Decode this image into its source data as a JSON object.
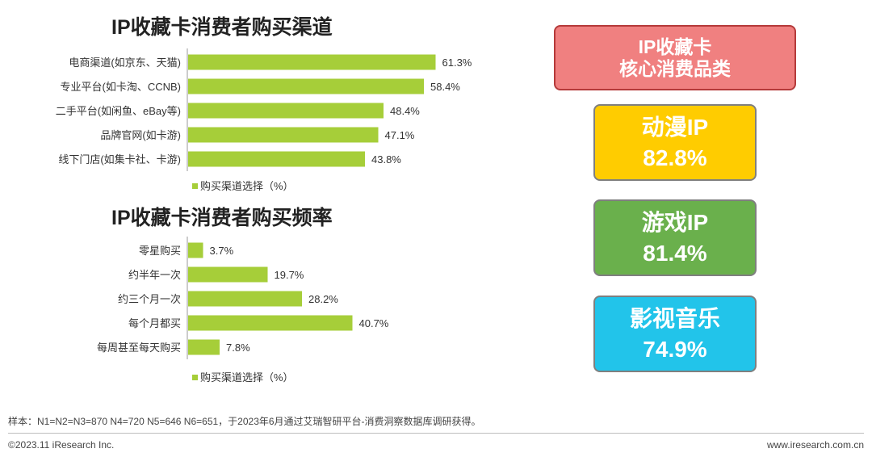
{
  "chart_data": [
    {
      "type": "bar",
      "orientation": "horizontal",
      "title": "IP收藏卡消费者购买渠道",
      "categories": [
        "电商渠道(如京东、天猫)",
        "专业平台(如卡淘、CCNB)",
        "二手平台(如闲鱼、eBay等)",
        "品牌官网(如卡游)",
        "线下门店(如集卡社、卡游)"
      ],
      "values": [
        61.3,
        58.4,
        48.4,
        47.1,
        43.8
      ],
      "value_labels": [
        "61.3%",
        "58.4%",
        "48.4%",
        "47.1%",
        "43.8%"
      ],
      "legend": "购买渠道选择（%）",
      "xlim": [
        0,
        100
      ],
      "color": "#a6ce39"
    },
    {
      "type": "bar",
      "orientation": "horizontal",
      "title": "IP收藏卡消费者购买频率",
      "categories": [
        "零星购买",
        "约半年一次",
        "约三个月一次",
        "每个月都买",
        "每周甚至每天购买"
      ],
      "values": [
        3.7,
        19.7,
        28.2,
        40.7,
        7.8
      ],
      "value_labels": [
        "3.7%",
        "19.7%",
        "28.2%",
        "40.7%",
        "7.8%"
      ],
      "legend": "购买渠道选择（%）",
      "xlim": [
        0,
        100
      ],
      "color": "#a6ce39"
    }
  ],
  "core_categories": {
    "header_line1": "IP收藏卡",
    "header_line2": "核心消费品类",
    "items": [
      {
        "name": "动漫IP",
        "value": "82.8%",
        "color": "#ffcc00"
      },
      {
        "name": "游戏IP",
        "value": "81.4%",
        "color": "#6ab04c"
      },
      {
        "name": "影视音乐",
        "value": "74.9%",
        "color": "#22c4ea"
      }
    ]
  },
  "footer": {
    "sample_note": "样本：N1=N2=N3=870 N4=720 N5=646 N6=651，于2023年6月通过艾瑞智研平台-消费洞察数据库调研获得。",
    "copyright": "©2023.11 iResearch Inc.",
    "website": "www.iresearch.com.cn"
  }
}
